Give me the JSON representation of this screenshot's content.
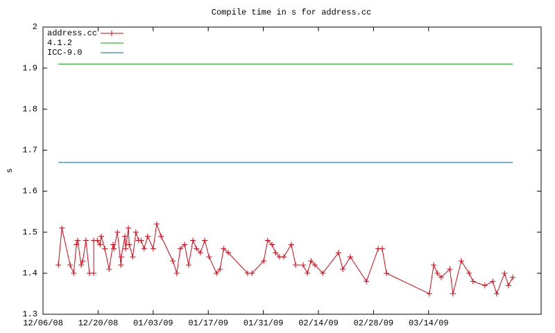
{
  "chart_data": {
    "type": "line",
    "title": "Compile time in s for address.cc",
    "y_label": "s",
    "xlim": [
      0,
      126.6
    ],
    "ylim": [
      1.3,
      2
    ],
    "xticks": [
      {
        "value": 0,
        "label": "12/06/08"
      },
      {
        "value": 14,
        "label": "12/20/08"
      },
      {
        "value": 28,
        "label": "01/03/09"
      },
      {
        "value": 42,
        "label": "01/17/09"
      },
      {
        "value": 56,
        "label": "01/31/09"
      },
      {
        "value": 70,
        "label": "02/14/09"
      },
      {
        "value": 84,
        "label": "02/28/09"
      },
      {
        "value": 98,
        "label": "03/14/09"
      }
    ],
    "yticks": [
      1.3,
      1.4,
      1.5,
      1.6,
      1.7,
      1.8,
      1.9,
      2
    ],
    "legend": "top-left",
    "grid": false,
    "series": [
      {
        "name": "address.cc",
        "color": "#e0000f",
        "markers": true,
        "x": [
          3.9,
          4.8,
          6.9,
          7.8,
          8.5,
          8.8,
          9.7,
          10.1,
          10.9,
          11.8,
          12.9,
          12.9,
          13.8,
          14.5,
          14.8,
          15.7,
          16.8,
          17.8,
          18.0,
          18.9,
          19.8,
          19.9,
          20.8,
          21.0,
          21.7,
          21.9,
          22.8,
          23.6,
          24.3,
          24.9,
          25.7,
          26.6,
          28.0,
          28.9,
          30.0,
          33.0,
          34.0,
          34.9,
          36.0,
          37.0,
          38.1,
          39.0,
          40.0,
          41.1,
          42.2,
          44.1,
          45.0,
          45.9,
          47.1,
          52.0,
          53.1,
          56.1,
          57.1,
          58.2,
          59.1,
          60.1,
          61.2,
          63.1,
          64.2,
          66.1,
          67.2,
          68.1,
          69.1,
          71.1,
          75.1,
          76.2,
          78.1,
          82.2,
          85.2,
          86.2,
          87.3,
          98.2,
          99.3,
          100.2,
          101.2,
          103.4,
          104.2,
          106.3,
          108.3,
          109.3,
          112.3,
          114.3,
          115.3,
          117.3,
          118.3,
          119.4
        ],
        "values": [
          1.42,
          1.51,
          1.42,
          1.4,
          1.47,
          1.48,
          1.42,
          1.43,
          1.48,
          1.4,
          1.4,
          1.48,
          1.48,
          1.47,
          1.49,
          1.46,
          1.41,
          1.47,
          1.46,
          1.5,
          1.42,
          1.44,
          1.49,
          1.46,
          1.51,
          1.47,
          1.44,
          1.5,
          1.48,
          1.48,
          1.46,
          1.49,
          1.46,
          1.52,
          1.49,
          1.43,
          1.4,
          1.46,
          1.47,
          1.42,
          1.48,
          1.46,
          1.45,
          1.48,
          1.44,
          1.4,
          1.41,
          1.46,
          1.45,
          1.4,
          1.4,
          1.43,
          1.48,
          1.47,
          1.45,
          1.44,
          1.44,
          1.47,
          1.42,
          1.42,
          1.4,
          1.43,
          1.42,
          1.4,
          1.45,
          1.41,
          1.44,
          1.38,
          1.46,
          1.46,
          1.4,
          1.35,
          1.42,
          1.4,
          1.39,
          1.41,
          1.35,
          1.43,
          1.4,
          1.38,
          1.37,
          1.38,
          1.35,
          1.4,
          1.37,
          1.39
        ]
      },
      {
        "name": "4.1.2",
        "color": "#00a000",
        "markers": false,
        "x": [
          3.9,
          119.4
        ],
        "values": [
          1.91,
          1.91
        ]
      },
      {
        "name": "ICC-9.0",
        "color": "#0060c0",
        "markers": false,
        "x": [
          3.9,
          119.4
        ],
        "values": [
          1.67,
          1.67
        ]
      }
    ]
  }
}
